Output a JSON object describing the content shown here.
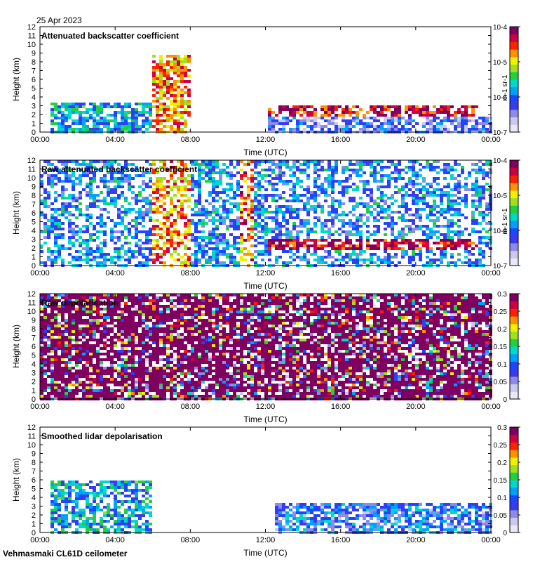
{
  "date_label": "25 Apr 2023",
  "site_label": "Vehmasmaki CL61D ceilometer",
  "chart_data": [
    {
      "type": "heatmap",
      "title": "Attenuated backscatter coefficient",
      "xlabel": "Time (UTC)",
      "ylabel": "Height (km)",
      "xticks": [
        "00:00",
        "04:00",
        "08:00",
        "12:00",
        "16:00",
        "20:00",
        "00:00"
      ],
      "xlim_hours": [
        0,
        24
      ],
      "ylim": [
        0,
        12
      ],
      "yticks": [
        0,
        1,
        2,
        3,
        4,
        5,
        6,
        7,
        8,
        9,
        10,
        11,
        12
      ],
      "colorbar": {
        "scale": "log",
        "range": [
          1e-07,
          0.0001
        ],
        "ticks": [
          "10-4",
          "10-5",
          "10-6",
          "10-7"
        ],
        "label": "m-1 sr-1"
      },
      "features": [
        {
          "name": "aerosol layer",
          "t_start": 0.5,
          "t_end": 5.8,
          "top_km": 3.5,
          "level": 0.4
        },
        {
          "name": "aerosol plume",
          "t_start": 5.8,
          "t_end": 8.0,
          "top_km": 9,
          "level": 0.75
        },
        {
          "name": "cloud layer",
          "t_start": 12.0,
          "t_end": 23.3,
          "base_km": 2.0,
          "top_km": 3.2,
          "level": 0.9
        },
        {
          "name": "boundary layer",
          "t_start": 12.0,
          "t_end": 24.0,
          "top_km": 2.0,
          "level": 0.25
        }
      ]
    },
    {
      "type": "heatmap",
      "title": "Raw attenuated backscatter coefficient",
      "xlabel": "Time (UTC)",
      "ylabel": "Height (km)",
      "xticks": [
        "00:00",
        "04:00",
        "08:00",
        "12:00",
        "16:00",
        "20:00",
        "00:00"
      ],
      "xlim_hours": [
        0,
        24
      ],
      "ylim": [
        0,
        12
      ],
      "yticks": [
        0,
        1,
        2,
        3,
        4,
        5,
        6,
        7,
        8,
        9,
        10,
        11,
        12
      ],
      "colorbar": {
        "scale": "log",
        "range": [
          1e-07,
          0.0001
        ],
        "ticks": [
          "10-4",
          "10-5",
          "10-6",
          "10-7"
        ],
        "label": "m-1 sr-1"
      },
      "features": [
        {
          "name": "background noise",
          "t_start": 0.0,
          "t_end": 24.0,
          "top_km": 12,
          "level": 0.35
        },
        {
          "name": "solar noise",
          "t_start": 5.8,
          "t_end": 8.0,
          "top_km": 12,
          "level": 0.75
        },
        {
          "name": "solar noise",
          "t_start": 10.6,
          "t_end": 11.3,
          "top_km": 12,
          "level": 0.8
        },
        {
          "name": "cloud layer",
          "t_start": 12.0,
          "t_end": 23.3,
          "base_km": 2.0,
          "top_km": 3.2,
          "level": 0.9
        }
      ]
    },
    {
      "type": "heatmap",
      "title": "Raw depolarisation",
      "xlabel": "Time (UTC)",
      "ylabel": "Height (km)",
      "xticks": [
        "00:00",
        "04:00",
        "08:00",
        "12:00",
        "16:00",
        "20:00",
        "00:00"
      ],
      "xlim_hours": [
        0,
        24
      ],
      "ylim": [
        0,
        12
      ],
      "yticks": [
        0,
        1,
        2,
        3,
        4,
        5,
        6,
        7,
        8,
        9,
        10,
        11,
        12
      ],
      "colorbar": {
        "scale": "linear",
        "range": [
          0,
          0.3
        ],
        "ticks": [
          "0.3",
          "0.25",
          "0.2",
          "0.15",
          "0.1",
          "0.05",
          "0"
        ],
        "label": ""
      },
      "features": [
        {
          "name": "noise",
          "t_start": 0.0,
          "t_end": 24.0,
          "top_km": 12,
          "level": 0.95
        },
        {
          "name": "low depolarisation layer",
          "t_start": 12.5,
          "t_end": 24.0,
          "top_km": 3.5,
          "level": 0.25
        }
      ]
    },
    {
      "type": "heatmap",
      "title": "Smoothed lidar depolarisation",
      "xlabel": "Time (UTC)",
      "ylabel": "Height (km)",
      "xticks": [
        "00:00",
        "04:00",
        "08:00",
        "12:00",
        "16:00",
        "20:00",
        "00:00"
      ],
      "xlim_hours": [
        0,
        24
      ],
      "ylim": [
        0,
        12
      ],
      "yticks": [
        0,
        1,
        2,
        3,
        4,
        5,
        6,
        7,
        8,
        9,
        10,
        11,
        12
      ],
      "colorbar": {
        "scale": "linear",
        "range": [
          0,
          0.3
        ],
        "ticks": [
          "0.3",
          "0.25",
          "0.2",
          "0.15",
          "0.1",
          "0.05",
          "0"
        ],
        "label": ""
      },
      "features": [
        {
          "name": "aerosol layer",
          "t_start": 0.5,
          "t_end": 5.8,
          "top_km": 6,
          "level": 0.4
        },
        {
          "name": "boundary layer",
          "t_start": 12.5,
          "t_end": 24.0,
          "top_km": 3.5,
          "level": 0.3
        }
      ]
    }
  ]
}
